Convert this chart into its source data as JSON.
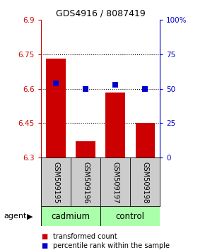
{
  "title": "GDS4916 / 8087419",
  "samples": [
    "GSM509195",
    "GSM509196",
    "GSM509197",
    "GSM509198"
  ],
  "bar_values": [
    6.73,
    6.37,
    6.585,
    6.45
  ],
  "bar_baseline": 6.3,
  "percentile_values": [
    54,
    50,
    53,
    50
  ],
  "ylim_left": [
    6.3,
    6.9
  ],
  "ylim_right": [
    0,
    100
  ],
  "yticks_left": [
    6.3,
    6.45,
    6.6,
    6.75,
    6.9
  ],
  "ytick_labels_left": [
    "6.3",
    "6.45",
    "6.6",
    "6.75",
    "6.9"
  ],
  "yticks_right": [
    0,
    25,
    50,
    75,
    100
  ],
  "ytick_labels_right": [
    "0",
    "25",
    "50",
    "75",
    "100%"
  ],
  "hlines": [
    6.45,
    6.6,
    6.75
  ],
  "bar_color": "#cc0000",
  "dot_color": "#0000cc",
  "gray_label_color": "#cccccc",
  "group_color": "#aaffaa",
  "legend_labels": [
    "transformed count",
    "percentile rank within the sample"
  ],
  "agent_label": "agent",
  "bar_width": 0.65,
  "dot_size": 30,
  "title_fontsize": 9,
  "tick_fontsize": 7.5,
  "sample_fontsize": 7,
  "group_fontsize": 8.5,
  "legend_fontsize": 7
}
